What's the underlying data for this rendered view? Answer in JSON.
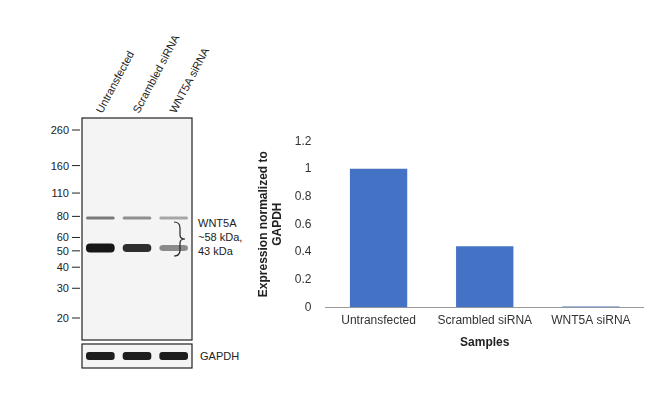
{
  "chart_data": {
    "type": "bar",
    "categories": [
      "Untransfected",
      "Scrambled siRNA",
      "WNT5A siRNA"
    ],
    "values": [
      1,
      0.44,
      0.005
    ],
    "color": "#4472c4",
    "x_label": "Samples",
    "y_label": [
      "Expression normalized to",
      "GAPDH"
    ],
    "ylim": [
      0,
      1.2
    ],
    "yticks": [
      0,
      0.2,
      0.4,
      0.6,
      0.8,
      1,
      1.2
    ],
    "grid": false
  },
  "blot": {
    "lanes": [
      "Untransfected",
      "Scrambled siRNA",
      "WNT5A siRNA"
    ],
    "markers": [
      260,
      160,
      110,
      80,
      60,
      50,
      40,
      30,
      20
    ],
    "band_label": [
      "WNT5A",
      "~58 kDa,",
      "43 kDa"
    ],
    "loading_control": "GAPDH"
  }
}
